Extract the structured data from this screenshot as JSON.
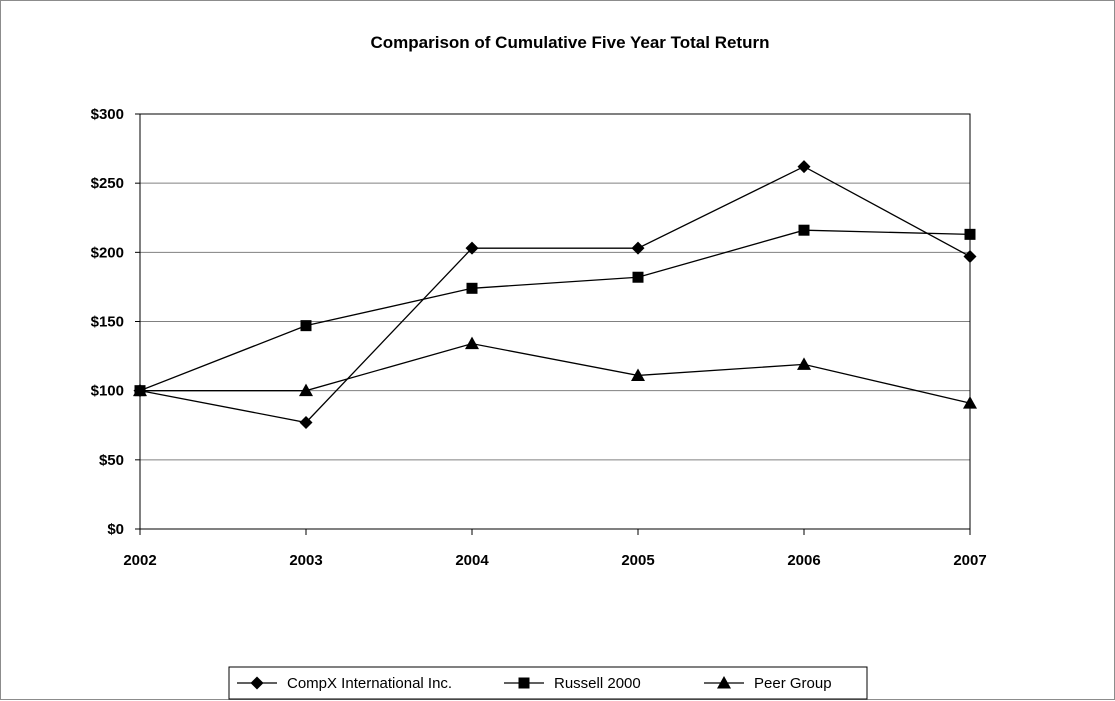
{
  "chart_data": {
    "type": "line",
    "title": "Comparison of Cumulative Five Year Total Return",
    "xlabel": "",
    "ylabel": "",
    "categories": [
      "2002",
      "2003",
      "2004",
      "2005",
      "2006",
      "2007"
    ],
    "ylim": [
      0,
      300
    ],
    "y_ticks": [
      0,
      50,
      100,
      150,
      200,
      250,
      300
    ],
    "y_tick_labels": [
      "$0",
      "$50",
      "$100",
      "$150",
      "$200",
      "$250",
      "$300"
    ],
    "grid": true,
    "legend_position": "bottom",
    "series": [
      {
        "name": "CompX International Inc.",
        "marker": "diamond",
        "values": [
          100,
          77,
          203,
          203,
          262,
          197
        ]
      },
      {
        "name": "Russell 2000",
        "marker": "square",
        "values": [
          100,
          147,
          174,
          182,
          216,
          213
        ]
      },
      {
        "name": "Peer Group",
        "marker": "triangle",
        "values": [
          100,
          100,
          134,
          111,
          119,
          91
        ]
      }
    ],
    "colors": {
      "line": "#000000",
      "grid": "#808080",
      "background": "#ffffff"
    }
  }
}
